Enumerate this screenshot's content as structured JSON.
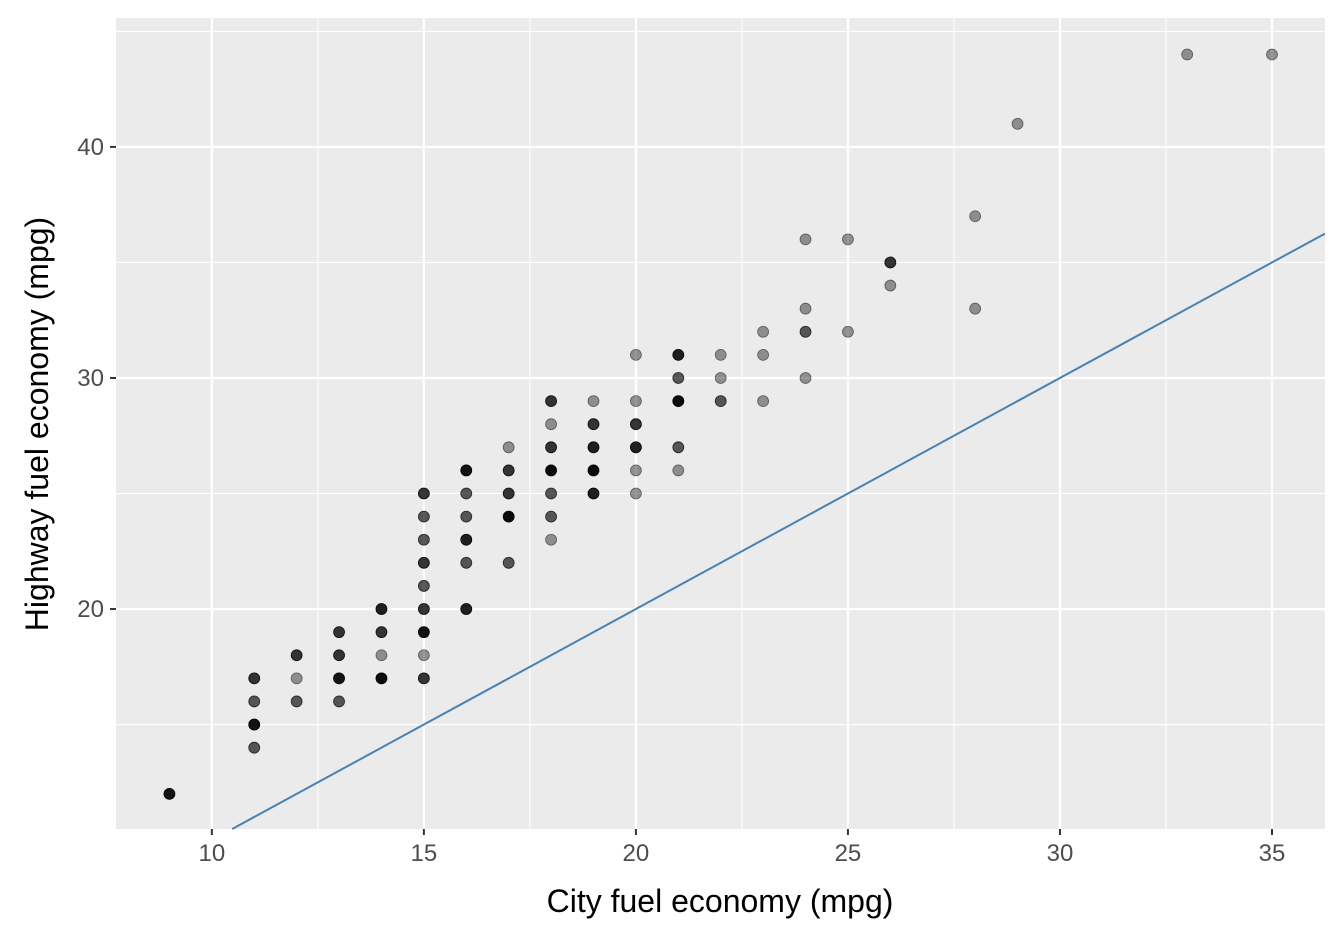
{
  "chart_data": {
    "type": "scatter",
    "title": "",
    "xlabel": "City fuel economy (mpg)",
    "ylabel": "Highway fuel economy (mpg)",
    "xlim": [
      7.74,
      36.25
    ],
    "ylim": [
      10.48,
      45.58
    ],
    "xticks": [
      10,
      15,
      20,
      25,
      30,
      35
    ],
    "yticks": [
      20,
      30,
      40
    ],
    "grid": true,
    "panel_background": "#EBEBEB",
    "point_color": "#000000",
    "point_alpha": 0.4,
    "reference_line": {
      "slope": 1,
      "intercept": 0,
      "color": "#4682B4"
    },
    "points_note_fields": [
      "cty",
      "hwy",
      "n"
    ],
    "points": [
      [
        9,
        12,
        5
      ],
      [
        11,
        17,
        3
      ],
      [
        11,
        16,
        2
      ],
      [
        11,
        15,
        5
      ],
      [
        11,
        14,
        2
      ],
      [
        12,
        18,
        3
      ],
      [
        12,
        17,
        1
      ],
      [
        12,
        16,
        2
      ],
      [
        13,
        19,
        3
      ],
      [
        13,
        18,
        3
      ],
      [
        13,
        17,
        5
      ],
      [
        13,
        16,
        2
      ],
      [
        14,
        20,
        4
      ],
      [
        14,
        19,
        3
      ],
      [
        14,
        18,
        1
      ],
      [
        14,
        17,
        6
      ],
      [
        15,
        25,
        3
      ],
      [
        15,
        24,
        2
      ],
      [
        15,
        23,
        2
      ],
      [
        15,
        22,
        3
      ],
      [
        15,
        21,
        2
      ],
      [
        15,
        20,
        3
      ],
      [
        15,
        19,
        5
      ],
      [
        15,
        18,
        1
      ],
      [
        15,
        17,
        3
      ],
      [
        16,
        26,
        5
      ],
      [
        16,
        25,
        2
      ],
      [
        16,
        24,
        2
      ],
      [
        16,
        23,
        4
      ],
      [
        16,
        22,
        2
      ],
      [
        16,
        20,
        4
      ],
      [
        17,
        27,
        1
      ],
      [
        17,
        26,
        3
      ],
      [
        17,
        25,
        3
      ],
      [
        17,
        24,
        6
      ],
      [
        17,
        22,
        2
      ],
      [
        18,
        29,
        3
      ],
      [
        18,
        28,
        1
      ],
      [
        18,
        27,
        3
      ],
      [
        18,
        26,
        6
      ],
      [
        18,
        25,
        2
      ],
      [
        18,
        24,
        2
      ],
      [
        18,
        23,
        1
      ],
      [
        19,
        29,
        1
      ],
      [
        19,
        28,
        3
      ],
      [
        19,
        27,
        4
      ],
      [
        19,
        26,
        6
      ],
      [
        19,
        25,
        4
      ],
      [
        20,
        31,
        1
      ],
      [
        20,
        29,
        1
      ],
      [
        20,
        28,
        3
      ],
      [
        20,
        27,
        4
      ],
      [
        20,
        26,
        1
      ],
      [
        20,
        25,
        1
      ],
      [
        21,
        31,
        4
      ],
      [
        21,
        30,
        2
      ],
      [
        21,
        29,
        6
      ],
      [
        21,
        27,
        2
      ],
      [
        21,
        26,
        1
      ],
      [
        22,
        31,
        1
      ],
      [
        22,
        30,
        1
      ],
      [
        22,
        29,
        2
      ],
      [
        23,
        32,
        1
      ],
      [
        23,
        31,
        1
      ],
      [
        23,
        29,
        1
      ],
      [
        24,
        36,
        1
      ],
      [
        24,
        33,
        1
      ],
      [
        24,
        32,
        2
      ],
      [
        24,
        30,
        1
      ],
      [
        25,
        36,
        1
      ],
      [
        25,
        32,
        1
      ],
      [
        26,
        35,
        3
      ],
      [
        26,
        34,
        1
      ],
      [
        28,
        37,
        1
      ],
      [
        28,
        33,
        1
      ],
      [
        29,
        41,
        1
      ],
      [
        33,
        44,
        1
      ],
      [
        35,
        44,
        1
      ]
    ]
  }
}
